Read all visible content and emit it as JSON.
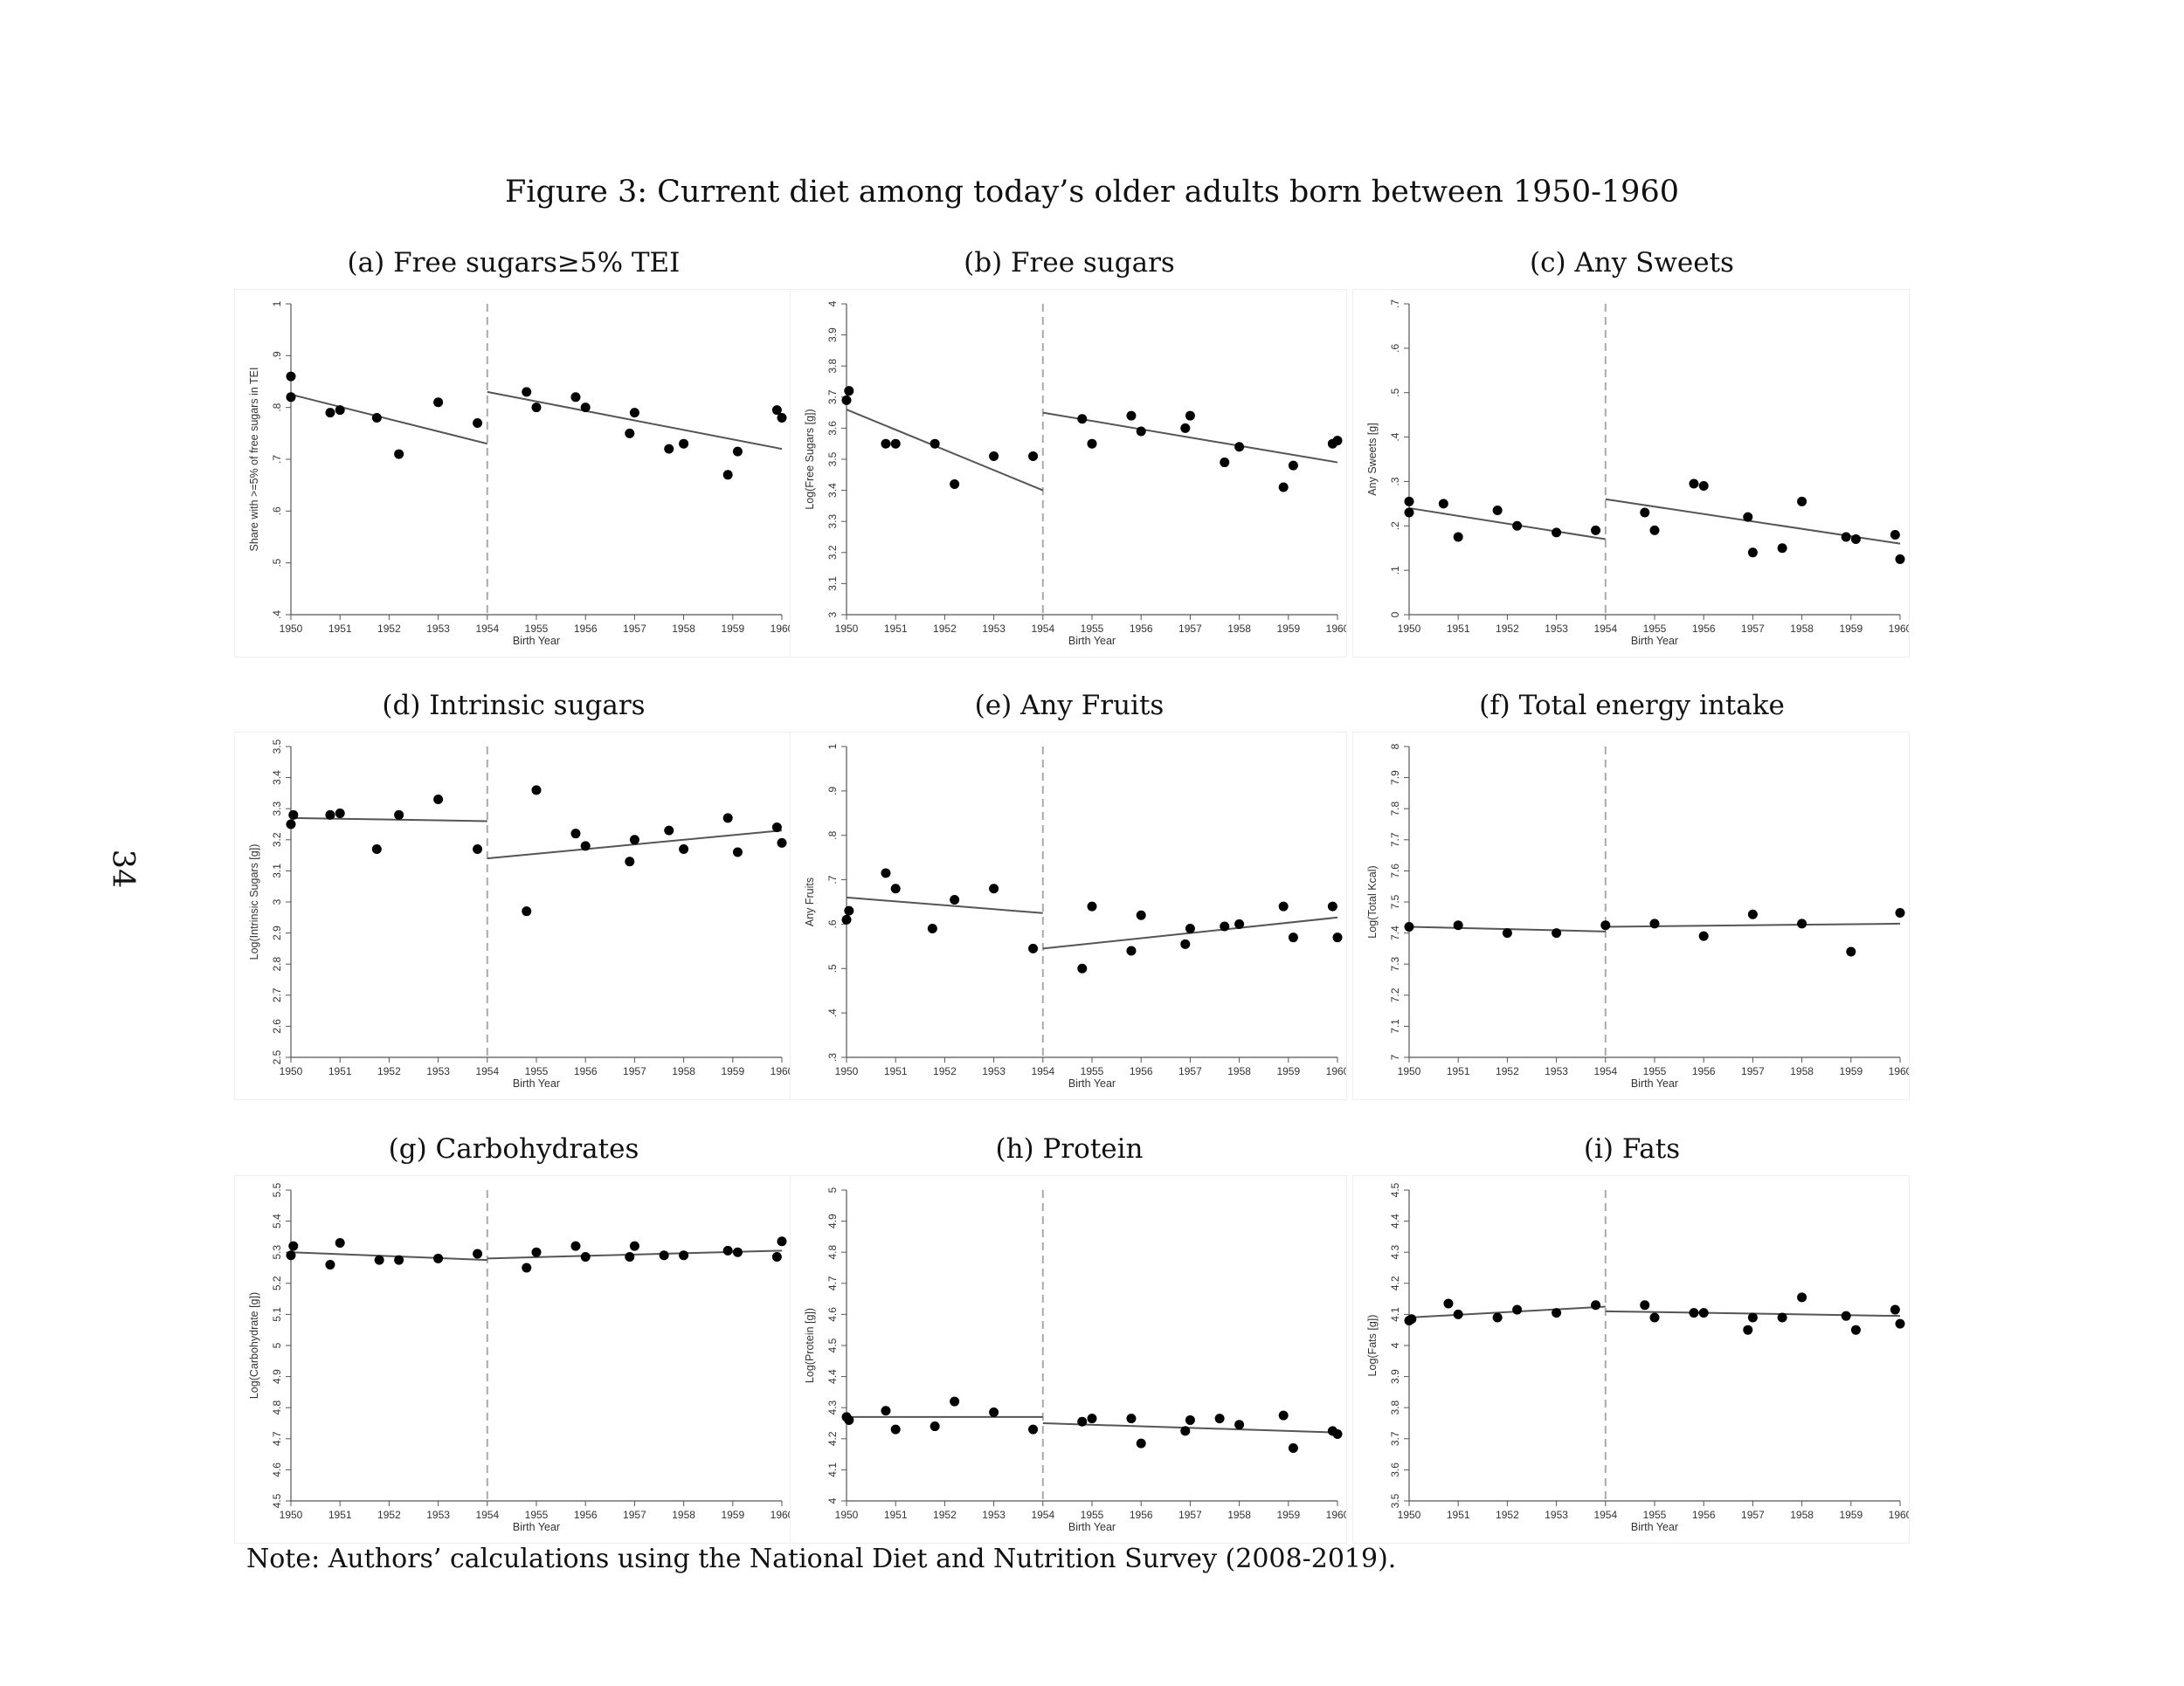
{
  "figure": {
    "title": "Figure 3: Current diet among today’s older adults born between 1950-1960",
    "page_number": "34",
    "note": "Note: Authors’ calculations using the National Diet and Nutrition Survey (2008-2019)."
  },
  "chart_data": [
    {
      "type": "scatter",
      "title": "(a) Free sugars≥5% TEI",
      "xlabel": "Birth Year",
      "ylabel": "Share with >=5% of free sugars in TEI",
      "xlim": [
        1950,
        1960
      ],
      "ylim": [
        0.4,
        1
      ],
      "xticks": [
        "1950",
        "1951",
        "1952",
        "1953",
        "1954",
        "1955",
        "1956",
        "1957",
        "1958",
        "1959",
        "1960"
      ],
      "yticks": [
        ".4",
        ".5",
        ".6",
        ".7",
        ".8",
        ".9",
        "1"
      ],
      "cutoff": 1954,
      "points": [
        [
          1950.0,
          0.82
        ],
        [
          1950.0,
          0.86
        ],
        [
          1950.8,
          0.79
        ],
        [
          1951.0,
          0.795
        ],
        [
          1951.75,
          0.78
        ],
        [
          1952.2,
          0.71
        ],
        [
          1953.0,
          0.81
        ],
        [
          1953.8,
          0.77
        ],
        [
          1954.8,
          0.83
        ],
        [
          1955.0,
          0.8
        ],
        [
          1955.8,
          0.82
        ],
        [
          1956.0,
          0.8
        ],
        [
          1956.9,
          0.75
        ],
        [
          1957.0,
          0.79
        ],
        [
          1957.7,
          0.72
        ],
        [
          1958.0,
          0.73
        ],
        [
          1958.9,
          0.67
        ],
        [
          1959.1,
          0.715
        ],
        [
          1959.9,
          0.795
        ],
        [
          1960.0,
          0.78
        ]
      ],
      "fit_lines": [
        {
          "x": [
            1950,
            1954
          ],
          "y": [
            0.825,
            0.73
          ]
        },
        {
          "x": [
            1954,
            1960
          ],
          "y": [
            0.83,
            0.72
          ]
        }
      ]
    },
    {
      "type": "scatter",
      "title": "(b) Free sugars",
      "xlabel": "Birth Year",
      "ylabel": "Log(Free Sugars [g])",
      "xlim": [
        1950,
        1960
      ],
      "ylim": [
        3,
        4
      ],
      "xticks": [
        "1950",
        "1951",
        "1952",
        "1953",
        "1954",
        "1955",
        "1956",
        "1957",
        "1958",
        "1959",
        "1960"
      ],
      "yticks": [
        "3",
        "3.1",
        "3.2",
        "3.3",
        "3.4",
        "3.5",
        "3.6",
        "3.7",
        "3.8",
        "3.9",
        "4"
      ],
      "cutoff": 1954,
      "points": [
        [
          1950.0,
          3.69
        ],
        [
          1950.05,
          3.72
        ],
        [
          1950.8,
          3.55
        ],
        [
          1951.0,
          3.55
        ],
        [
          1951.8,
          3.55
        ],
        [
          1952.2,
          3.42
        ],
        [
          1953.0,
          3.51
        ],
        [
          1953.8,
          3.51
        ],
        [
          1954.8,
          3.63
        ],
        [
          1955.0,
          3.55
        ],
        [
          1955.8,
          3.64
        ],
        [
          1956.0,
          3.59
        ],
        [
          1956.9,
          3.6
        ],
        [
          1957.0,
          3.64
        ],
        [
          1957.7,
          3.49
        ],
        [
          1958.0,
          3.54
        ],
        [
          1958.9,
          3.41
        ],
        [
          1959.1,
          3.48
        ],
        [
          1959.9,
          3.55
        ],
        [
          1960.0,
          3.56
        ]
      ],
      "fit_lines": [
        {
          "x": [
            1950,
            1954
          ],
          "y": [
            3.66,
            3.4
          ]
        },
        {
          "x": [
            1954,
            1960
          ],
          "y": [
            3.65,
            3.49
          ]
        }
      ]
    },
    {
      "type": "scatter",
      "title": "(c) Any Sweets",
      "xlabel": "Birth Year",
      "ylabel": "Any Sweets [g]",
      "xlim": [
        1950,
        1960
      ],
      "ylim": [
        0,
        0.7
      ],
      "xticks": [
        "1950",
        "1951",
        "1952",
        "1953",
        "1954",
        "1955",
        "1956",
        "1957",
        "1958",
        "1959",
        "1960"
      ],
      "yticks": [
        "0",
        ".1",
        ".2",
        ".3",
        ".4",
        ".5",
        ".6",
        ".7"
      ],
      "cutoff": 1954,
      "points": [
        [
          1950.0,
          0.23
        ],
        [
          1950.0,
          0.255
        ],
        [
          1950.7,
          0.25
        ],
        [
          1951.0,
          0.175
        ],
        [
          1951.8,
          0.235
        ],
        [
          1952.2,
          0.2
        ],
        [
          1953.0,
          0.185
        ],
        [
          1953.8,
          0.19
        ],
        [
          1954.8,
          0.23
        ],
        [
          1955.0,
          0.19
        ],
        [
          1955.8,
          0.295
        ],
        [
          1956.0,
          0.29
        ],
        [
          1956.9,
          0.22
        ],
        [
          1957.0,
          0.14
        ],
        [
          1957.6,
          0.15
        ],
        [
          1958.0,
          0.255
        ],
        [
          1958.9,
          0.175
        ],
        [
          1959.1,
          0.17
        ],
        [
          1959.9,
          0.18
        ],
        [
          1960.0,
          0.125
        ]
      ],
      "fit_lines": [
        {
          "x": [
            1950,
            1954
          ],
          "y": [
            0.24,
            0.17
          ]
        },
        {
          "x": [
            1954,
            1960
          ],
          "y": [
            0.26,
            0.16
          ]
        }
      ]
    },
    {
      "type": "scatter",
      "title": "(d) Intrinsic sugars",
      "xlabel": "Birth Year",
      "ylabel": "Log(Intrinsic Sugars [g])",
      "xlim": [
        1950,
        1960
      ],
      "ylim": [
        2.5,
        3.5
      ],
      "xticks": [
        "1950",
        "1951",
        "1952",
        "1953",
        "1954",
        "1955",
        "1956",
        "1957",
        "1958",
        "1959",
        "1960"
      ],
      "yticks": [
        "2.5",
        "2.6",
        "2.7",
        "2.8",
        "2.9",
        "3",
        "3.1",
        "3.2",
        "3.3",
        "3.4",
        "3.5"
      ],
      "cutoff": 1954,
      "points": [
        [
          1950.0,
          3.25
        ],
        [
          1950.05,
          3.28
        ],
        [
          1950.8,
          3.28
        ],
        [
          1951.0,
          3.285
        ],
        [
          1951.75,
          3.17
        ],
        [
          1952.2,
          3.28
        ],
        [
          1953.0,
          3.33
        ],
        [
          1953.8,
          3.17
        ],
        [
          1954.8,
          2.97
        ],
        [
          1955.0,
          3.36
        ],
        [
          1955.8,
          3.22
        ],
        [
          1956.0,
          3.18
        ],
        [
          1956.9,
          3.13
        ],
        [
          1957.0,
          3.2
        ],
        [
          1957.7,
          3.23
        ],
        [
          1958.0,
          3.17
        ],
        [
          1958.9,
          3.27
        ],
        [
          1959.1,
          3.16
        ],
        [
          1959.9,
          3.24
        ],
        [
          1960.0,
          3.19
        ]
      ],
      "fit_lines": [
        {
          "x": [
            1950,
            1954
          ],
          "y": [
            3.27,
            3.26
          ]
        },
        {
          "x": [
            1954,
            1960
          ],
          "y": [
            3.14,
            3.23
          ]
        }
      ]
    },
    {
      "type": "scatter",
      "title": "(e) Any Fruits",
      "xlabel": "Birth Year",
      "ylabel": "Any Fruits",
      "xlim": [
        1950,
        1960
      ],
      "ylim": [
        0.3,
        1
      ],
      "xticks": [
        "1950",
        "1951",
        "1952",
        "1953",
        "1954",
        "1955",
        "1956",
        "1957",
        "1958",
        "1959",
        "1960"
      ],
      "yticks": [
        ".3",
        ".4",
        ".5",
        ".6",
        ".7",
        ".8",
        ".9",
        "1"
      ],
      "cutoff": 1954,
      "points": [
        [
          1950.0,
          0.61
        ],
        [
          1950.05,
          0.63
        ],
        [
          1950.8,
          0.715
        ],
        [
          1951.0,
          0.68
        ],
        [
          1951.75,
          0.59
        ],
        [
          1952.2,
          0.655
        ],
        [
          1953.0,
          0.68
        ],
        [
          1953.8,
          0.545
        ],
        [
          1954.8,
          0.5
        ],
        [
          1955.0,
          0.64
        ],
        [
          1955.8,
          0.54
        ],
        [
          1956.0,
          0.62
        ],
        [
          1956.9,
          0.555
        ],
        [
          1957.0,
          0.59
        ],
        [
          1957.7,
          0.595
        ],
        [
          1958.0,
          0.6
        ],
        [
          1958.9,
          0.64
        ],
        [
          1959.1,
          0.57
        ],
        [
          1959.9,
          0.64
        ],
        [
          1960.0,
          0.57
        ]
      ],
      "fit_lines": [
        {
          "x": [
            1950,
            1954
          ],
          "y": [
            0.66,
            0.625
          ]
        },
        {
          "x": [
            1954,
            1960
          ],
          "y": [
            0.545,
            0.615
          ]
        }
      ]
    },
    {
      "type": "scatter",
      "title": "(f) Total energy intake",
      "xlabel": "Birth Year",
      "ylabel": "Log(Total Kcal)",
      "xlim": [
        1950,
        1960
      ],
      "ylim": [
        7,
        8
      ],
      "xticks": [
        "1950",
        "1951",
        "1952",
        "1953",
        "1954",
        "1955",
        "1956",
        "1957",
        "1958",
        "1959",
        "1960"
      ],
      "yticks": [
        "7",
        "7.1",
        "7.2",
        "7.3",
        "7.4",
        "7.5",
        "7.6",
        "7.7",
        "7.8",
        "7.9",
        "8"
      ],
      "cutoff": 1954,
      "points": [
        [
          1950.0,
          7.42
        ],
        [
          1951.0,
          7.425
        ],
        [
          1952.0,
          7.4
        ],
        [
          1953.0,
          7.4
        ],
        [
          1954.0,
          7.425
        ],
        [
          1955.0,
          7.43
        ],
        [
          1956.0,
          7.39
        ],
        [
          1957.0,
          7.46
        ],
        [
          1958.0,
          7.43
        ],
        [
          1959.0,
          7.34
        ],
        [
          1960.0,
          7.465
        ]
      ],
      "fit_lines": [
        {
          "x": [
            1950,
            1954
          ],
          "y": [
            7.42,
            7.405
          ]
        },
        {
          "x": [
            1954,
            1960
          ],
          "y": [
            7.42,
            7.43
          ]
        }
      ]
    },
    {
      "type": "scatter",
      "title": "(g) Carbohydrates",
      "xlabel": "Birth Year",
      "ylabel": "Log(Carbohydrate [g])",
      "xlim": [
        1950,
        1960
      ],
      "ylim": [
        4.5,
        5.5
      ],
      "xticks": [
        "1950",
        "1951",
        "1952",
        "1953",
        "1954",
        "1955",
        "1956",
        "1957",
        "1958",
        "1959",
        "1960"
      ],
      "yticks": [
        "4.5",
        "4.6",
        "4.7",
        "4.8",
        "4.9",
        "5",
        "5.1",
        "5.2",
        "5.3",
        "5.4",
        "5.5"
      ],
      "cutoff": 1954,
      "points": [
        [
          1950.0,
          5.29
        ],
        [
          1950.05,
          5.32
        ],
        [
          1950.8,
          5.26
        ],
        [
          1951.0,
          5.33
        ],
        [
          1951.8,
          5.275
        ],
        [
          1952.2,
          5.275
        ],
        [
          1953.0,
          5.28
        ],
        [
          1953.8,
          5.295
        ],
        [
          1954.8,
          5.25
        ],
        [
          1955.0,
          5.3
        ],
        [
          1955.8,
          5.32
        ],
        [
          1956.0,
          5.285
        ],
        [
          1956.9,
          5.285
        ],
        [
          1957.0,
          5.32
        ],
        [
          1957.6,
          5.29
        ],
        [
          1958.0,
          5.29
        ],
        [
          1958.9,
          5.305
        ],
        [
          1959.1,
          5.3
        ],
        [
          1959.9,
          5.285
        ],
        [
          1960.0,
          5.335
        ]
      ],
      "fit_lines": [
        {
          "x": [
            1950,
            1954
          ],
          "y": [
            5.3,
            5.275
          ]
        },
        {
          "x": [
            1954,
            1960
          ],
          "y": [
            5.28,
            5.305
          ]
        }
      ]
    },
    {
      "type": "scatter",
      "title": "(h) Protein",
      "xlabel": "Birth Year",
      "ylabel": "Log(Protein [g])",
      "xlim": [
        1950,
        1960
      ],
      "ylim": [
        4,
        5
      ],
      "xticks": [
        "1950",
        "1951",
        "1952",
        "1953",
        "1954",
        "1955",
        "1956",
        "1957",
        "1958",
        "1959",
        "1960"
      ],
      "yticks": [
        "4",
        "4.1",
        "4.2",
        "4.3",
        "4.4",
        "4.5",
        "4.6",
        "4.7",
        "4.8",
        "4.9",
        "5"
      ],
      "cutoff": 1954,
      "points": [
        [
          1950.0,
          4.27
        ],
        [
          1950.05,
          4.26
        ],
        [
          1950.8,
          4.29
        ],
        [
          1951.0,
          4.23
        ],
        [
          1951.8,
          4.24
        ],
        [
          1952.2,
          4.32
        ],
        [
          1953.0,
          4.285
        ],
        [
          1953.8,
          4.23
        ],
        [
          1954.8,
          4.255
        ],
        [
          1955.0,
          4.265
        ],
        [
          1955.8,
          4.265
        ],
        [
          1956.0,
          4.185
        ],
        [
          1956.9,
          4.225
        ],
        [
          1957.0,
          4.26
        ],
        [
          1957.6,
          4.265
        ],
        [
          1958.0,
          4.245
        ],
        [
          1958.9,
          4.275
        ],
        [
          1959.1,
          4.17
        ],
        [
          1959.9,
          4.225
        ],
        [
          1960.0,
          4.215
        ]
      ],
      "fit_lines": [
        {
          "x": [
            1950,
            1954
          ],
          "y": [
            4.27,
            4.27
          ]
        },
        {
          "x": [
            1954,
            1960
          ],
          "y": [
            4.25,
            4.22
          ]
        }
      ]
    },
    {
      "type": "scatter",
      "title": "(i) Fats",
      "xlabel": "Birth Year",
      "ylabel": "Log(Fats [g])",
      "xlim": [
        1950,
        1960
      ],
      "ylim": [
        3.5,
        4.5
      ],
      "xticks": [
        "1950",
        "1951",
        "1952",
        "1953",
        "1954",
        "1955",
        "1956",
        "1957",
        "1958",
        "1959",
        "1960"
      ],
      "yticks": [
        "3.5",
        "3.6",
        "3.7",
        "3.8",
        "3.9",
        "4",
        "4.1",
        "4.2",
        "4.3",
        "4.4",
        "4.5"
      ],
      "cutoff": 1954,
      "points": [
        [
          1950.0,
          4.08
        ],
        [
          1950.05,
          4.085
        ],
        [
          1950.8,
          4.135
        ],
        [
          1951.0,
          4.1
        ],
        [
          1951.8,
          4.09
        ],
        [
          1952.2,
          4.115
        ],
        [
          1953.0,
          4.105
        ],
        [
          1953.8,
          4.13
        ],
        [
          1954.8,
          4.13
        ],
        [
          1955.0,
          4.09
        ],
        [
          1955.8,
          4.105
        ],
        [
          1956.0,
          4.105
        ],
        [
          1956.9,
          4.05
        ],
        [
          1957.0,
          4.09
        ],
        [
          1957.6,
          4.09
        ],
        [
          1958.0,
          4.155
        ],
        [
          1958.9,
          4.095
        ],
        [
          1959.1,
          4.05
        ],
        [
          1959.9,
          4.115
        ],
        [
          1960.0,
          4.07
        ]
      ],
      "fit_lines": [
        {
          "x": [
            1950,
            1954
          ],
          "y": [
            4.09,
            4.125
          ]
        },
        {
          "x": [
            1954,
            1960
          ],
          "y": [
            4.11,
            4.095
          ]
        }
      ]
    }
  ]
}
